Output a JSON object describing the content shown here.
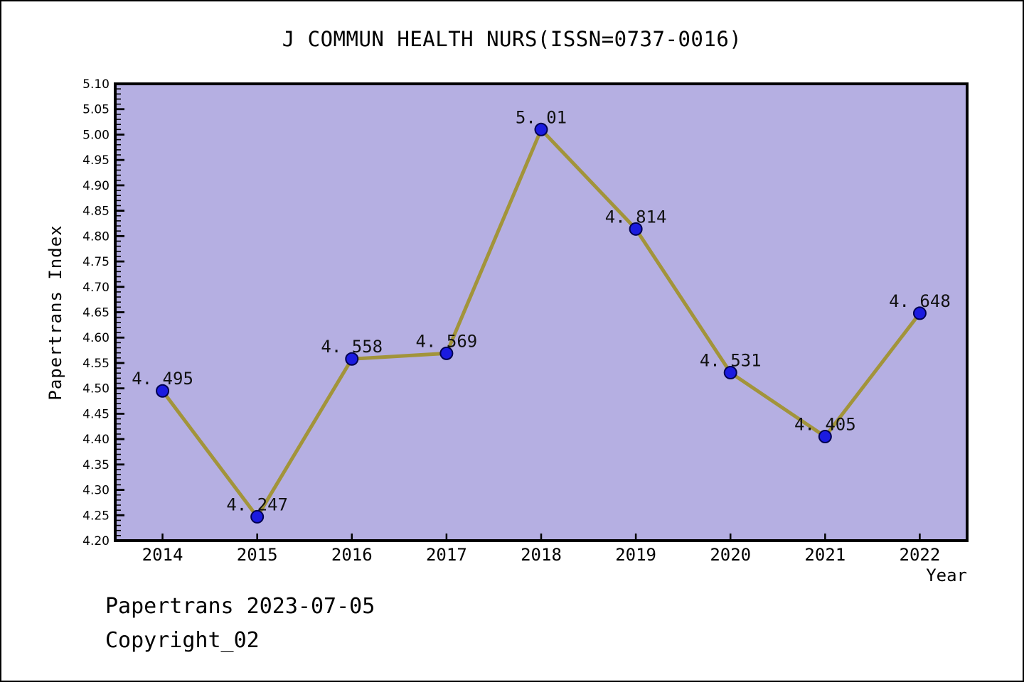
{
  "figure": {
    "footer": {
      "line1": "Papertrans 2023-07-05",
      "line2": "Copyright_02"
    }
  },
  "chart_data": {
    "type": "line",
    "title": "J COMMUN HEALTH NURS(ISSN=0737-0016)",
    "xlabel": "Year",
    "ylabel": "Papertrans Index",
    "categories": [
      2014,
      2015,
      2016,
      2017,
      2018,
      2019,
      2020,
      2021,
      2022
    ],
    "series": [
      {
        "name": "Papertrans Index",
        "values": [
          4.495,
          4.247,
          4.558,
          4.569,
          5.01,
          4.814,
          4.531,
          4.405,
          4.648
        ],
        "point_labels": [
          "4. 495",
          "4. 247",
          "4. 558",
          "4. 569",
          "5. 01",
          "4. 814",
          "4. 531",
          "4. 405",
          "4. 648"
        ]
      }
    ],
    "ylim": [
      4.2,
      5.1
    ],
    "ytick_step": 0.05,
    "ytick_minor_step": 0.01,
    "ytick_labels": [
      "4.20",
      "4.25",
      "4.30",
      "4.35",
      "4.40",
      "4.45",
      "4.50",
      "4.55",
      "4.60",
      "4.65",
      "4.70",
      "4.75",
      "4.80",
      "4.85",
      "4.90",
      "4.95",
      "5.00",
      "5.05",
      "5.10"
    ],
    "grid": false,
    "legend_position": "none",
    "colors": {
      "plot_background": "#b5afe2",
      "line": "#a2943a",
      "marker_fill": "#1b1be0",
      "marker_edge": "#000050",
      "axis": "#000000",
      "label_text": "#111111"
    }
  }
}
